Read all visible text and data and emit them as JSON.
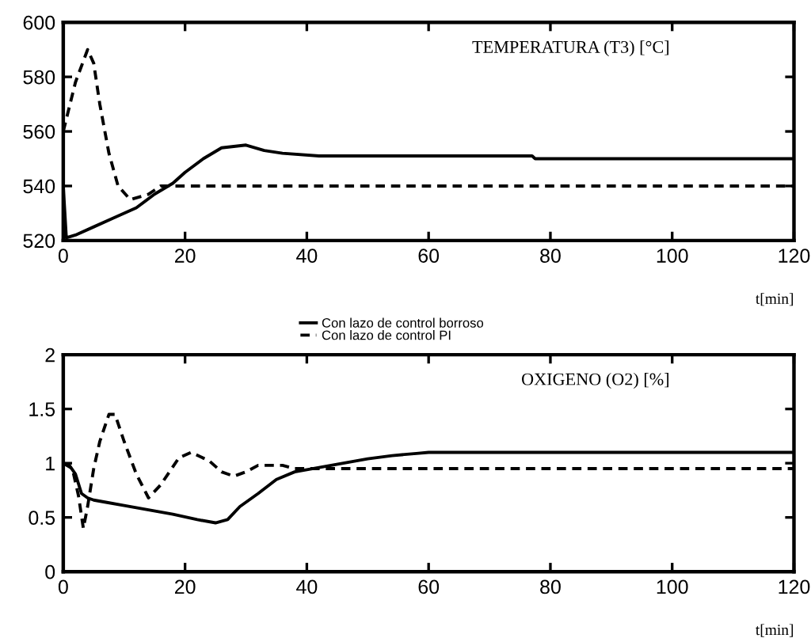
{
  "chart_data": [
    {
      "type": "line",
      "annotations": [
        "TEMPERATURA (T3) [°C]"
      ],
      "xlabel": "t[min]",
      "xlim": [
        0,
        120
      ],
      "xticks": [
        0,
        20,
        40,
        60,
        80,
        100,
        120
      ],
      "ylim": [
        520,
        600
      ],
      "yticks": [
        520,
        540,
        560,
        580,
        600
      ],
      "grid": false,
      "legend": false,
      "series": [
        {
          "color": "#000000",
          "line_style": "solid",
          "x": [
            0,
            0.5,
            2,
            5,
            8,
            12,
            15,
            18,
            20,
            23,
            26,
            30,
            33,
            36,
            42,
            77,
            77.5,
            120
          ],
          "values": [
            540,
            521,
            522,
            525,
            528,
            532,
            537,
            541,
            545,
            550,
            554,
            555,
            553,
            552,
            551,
            551,
            550,
            550
          ]
        },
        {
          "color": "#000000",
          "line_style": "dashed",
          "x": [
            0,
            2,
            4,
            5,
            6,
            7.5,
            9,
            11,
            14,
            16,
            120
          ],
          "values": [
            560,
            578,
            590,
            585,
            570,
            552,
            540,
            535,
            537,
            540,
            540
          ]
        }
      ]
    },
    {
      "type": "line",
      "annotations": [
        "OXIGENO (O2) [%]"
      ],
      "xlabel": "t[min]",
      "xlim": [
        0,
        120
      ],
      "xticks": [
        0,
        20,
        40,
        60,
        80,
        100,
        120
      ],
      "ylim": [
        0,
        2
      ],
      "yticks": [
        0,
        0.5,
        1,
        1.5,
        2
      ],
      "grid": false,
      "legend": "top",
      "series": [
        {
          "name": "Con lazo de control borroso",
          "color": "#000000",
          "line_style": "solid",
          "x": [
            0,
            1,
            2,
            3,
            4,
            5,
            7,
            10,
            14,
            18,
            22,
            25,
            27,
            29,
            32,
            35,
            38,
            42,
            46,
            50,
            54,
            58,
            60,
            120
          ],
          "values": [
            1.0,
            0.98,
            0.9,
            0.72,
            0.68,
            0.66,
            0.64,
            0.61,
            0.57,
            0.53,
            0.48,
            0.45,
            0.48,
            0.6,
            0.72,
            0.85,
            0.92,
            0.96,
            1.0,
            1.04,
            1.07,
            1.09,
            1.1,
            1.1
          ]
        },
        {
          "name": "Con lazo de control PI",
          "color": "#000000",
          "line_style": "dashed",
          "x": [
            0,
            1.5,
            2.5,
            3.3,
            4,
            5,
            6,
            7.5,
            8.5,
            10,
            12,
            14,
            16,
            19,
            21,
            24,
            26,
            28,
            30,
            32,
            36,
            38,
            120
          ],
          "values": [
            1.0,
            0.95,
            0.7,
            0.4,
            0.6,
            0.95,
            1.2,
            1.45,
            1.45,
            1.2,
            0.9,
            0.68,
            0.8,
            1.05,
            1.1,
            1.02,
            0.92,
            0.88,
            0.92,
            0.98,
            0.98,
            0.95,
            0.95
          ]
        }
      ]
    }
  ]
}
